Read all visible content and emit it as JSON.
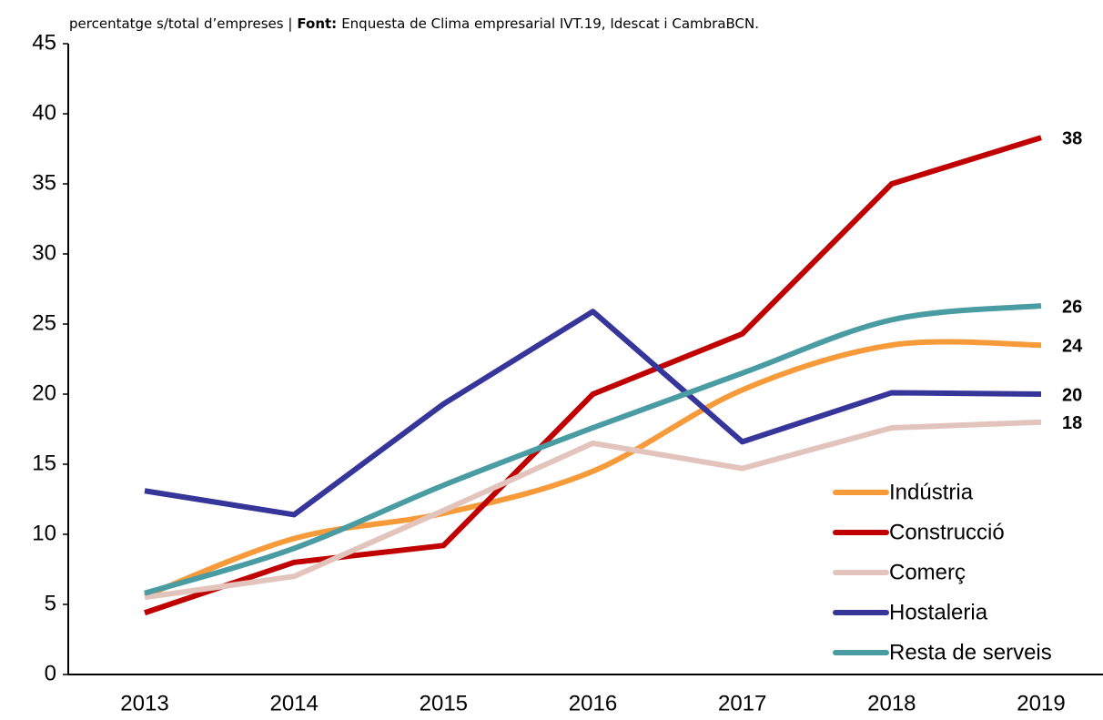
{
  "chart_data": {
    "type": "line",
    "subtitle": "percentatge s/total d’empreses |",
    "source_label": "Font:",
    "source": "Enquesta de Clima empresarial IVT.19, Idescat i CambraBCN.",
    "categories": [
      "2013",
      "2014",
      "2015",
      "2016",
      "2017",
      "2018",
      "2019"
    ],
    "ylim": [
      0,
      45
    ],
    "yticks": [
      0,
      5,
      10,
      15,
      20,
      25,
      30,
      35,
      40,
      45
    ],
    "grid": false,
    "legend": "lower right",
    "series": [
      {
        "name": "Indústria",
        "color": "#f79a3a",
        "smooth": true,
        "values": [
          5.6,
          9.7,
          11.5,
          14.5,
          20.3,
          23.5,
          23.5
        ],
        "value_labels": [
          null,
          null,
          null,
          null,
          null,
          null,
          "24"
        ],
        "label_color": "#f79a3a"
      },
      {
        "name": "Construcció",
        "color": "#c00000",
        "smooth": false,
        "values": [
          4.4,
          8.0,
          9.2,
          20.0,
          24.3,
          35.0,
          38.3
        ],
        "value_labels": [
          null,
          null,
          null,
          null,
          null,
          null,
          "38"
        ],
        "label_color": "#c00000"
      },
      {
        "name": "Comerç",
        "color": "#e3c4bd",
        "smooth": false,
        "values": [
          5.5,
          7.0,
          11.7,
          16.5,
          14.7,
          17.6,
          18.0
        ],
        "value_labels": [
          null,
          null,
          null,
          null,
          null,
          null,
          "18"
        ],
        "label_color": "#e3c4bd"
      },
      {
        "name": "Hostaleria",
        "color": "#363599",
        "smooth": false,
        "values": [
          13.1,
          11.4,
          19.3,
          25.9,
          16.6,
          20.1,
          20.0
        ],
        "value_labels": [
          null,
          null,
          null,
          null,
          null,
          null,
          "20"
        ],
        "label_color": "#1f5f8b"
      },
      {
        "name": "Resta de serveis",
        "color": "#4a9ca3",
        "smooth": true,
        "values": [
          5.8,
          9.0,
          13.5,
          17.6,
          21.5,
          25.3,
          26.3
        ],
        "value_labels": [
          null,
          null,
          null,
          null,
          null,
          null,
          "26"
        ],
        "label_color": "#4a9ca3"
      }
    ]
  }
}
